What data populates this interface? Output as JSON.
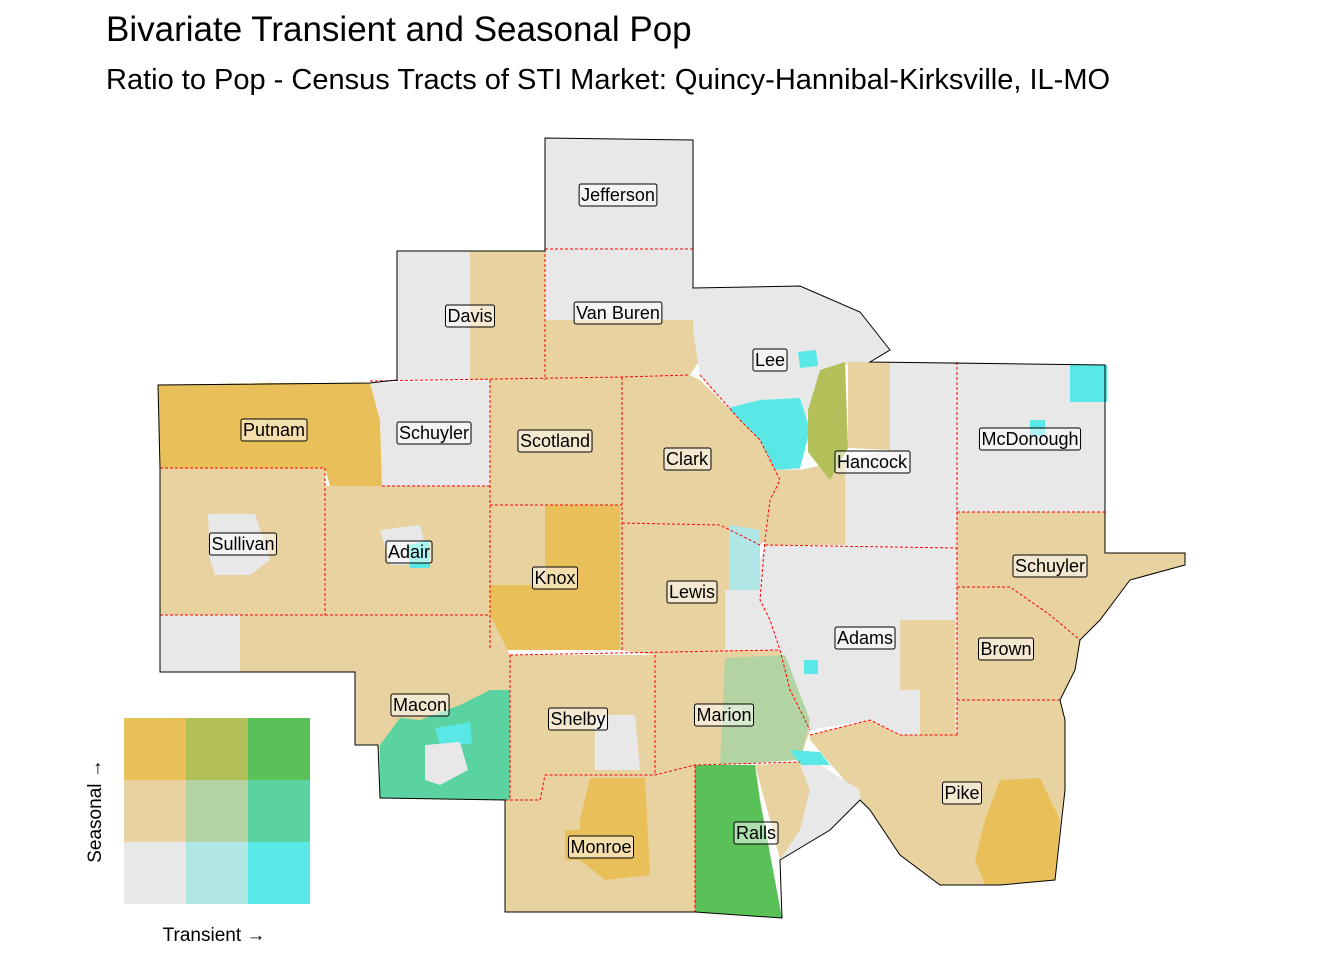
{
  "title": "Bivariate Transient and Seasonal Pop",
  "subtitle": "Ratio to Pop - Census Tracts of STI Market: Quincy-Hannibal-Kirksville, IL-MO",
  "colors": {
    "low_low": "#e8e8e8",
    "mid_low": "#b0e7e6",
    "high_low": "#5ae8e6",
    "low_mid": "#e8d3a0",
    "mid_mid": "#b3d4a2",
    "high_mid": "#5ad3a0",
    "low_high": "#e8bf58",
    "mid_high": "#b3bf58",
    "high_high": "#5ac158",
    "boundary": "#ff0000",
    "outline": "#000000"
  },
  "legend": {
    "x_label": "Transient →",
    "y_label": "Seasonal →"
  },
  "counties": [
    {
      "id": "jefferson",
      "label": "Jefferson"
    },
    {
      "id": "davis",
      "label": "Davis"
    },
    {
      "id": "van-buren",
      "label": "Van Buren"
    },
    {
      "id": "lee",
      "label": "Lee"
    },
    {
      "id": "putnam",
      "label": "Putnam"
    },
    {
      "id": "schuyler-mo",
      "label": "Schuyler"
    },
    {
      "id": "scotland",
      "label": "Scotland"
    },
    {
      "id": "clark",
      "label": "Clark"
    },
    {
      "id": "hancock",
      "label": "Hancock"
    },
    {
      "id": "mcdonough",
      "label": "McDonough"
    },
    {
      "id": "sullivan",
      "label": "Sullivan"
    },
    {
      "id": "adair",
      "label": "Adair"
    },
    {
      "id": "knox",
      "label": "Knox"
    },
    {
      "id": "lewis",
      "label": "Lewis"
    },
    {
      "id": "schuyler-il",
      "label": "Schuyler"
    },
    {
      "id": "adams",
      "label": "Adams"
    },
    {
      "id": "brown",
      "label": "Brown"
    },
    {
      "id": "macon",
      "label": "Macon"
    },
    {
      "id": "shelby",
      "label": "Shelby"
    },
    {
      "id": "marion",
      "label": "Marion"
    },
    {
      "id": "pike",
      "label": "Pike"
    },
    {
      "id": "ralls",
      "label": "Ralls"
    },
    {
      "id": "monroe",
      "label": "Monroe"
    }
  ]
}
